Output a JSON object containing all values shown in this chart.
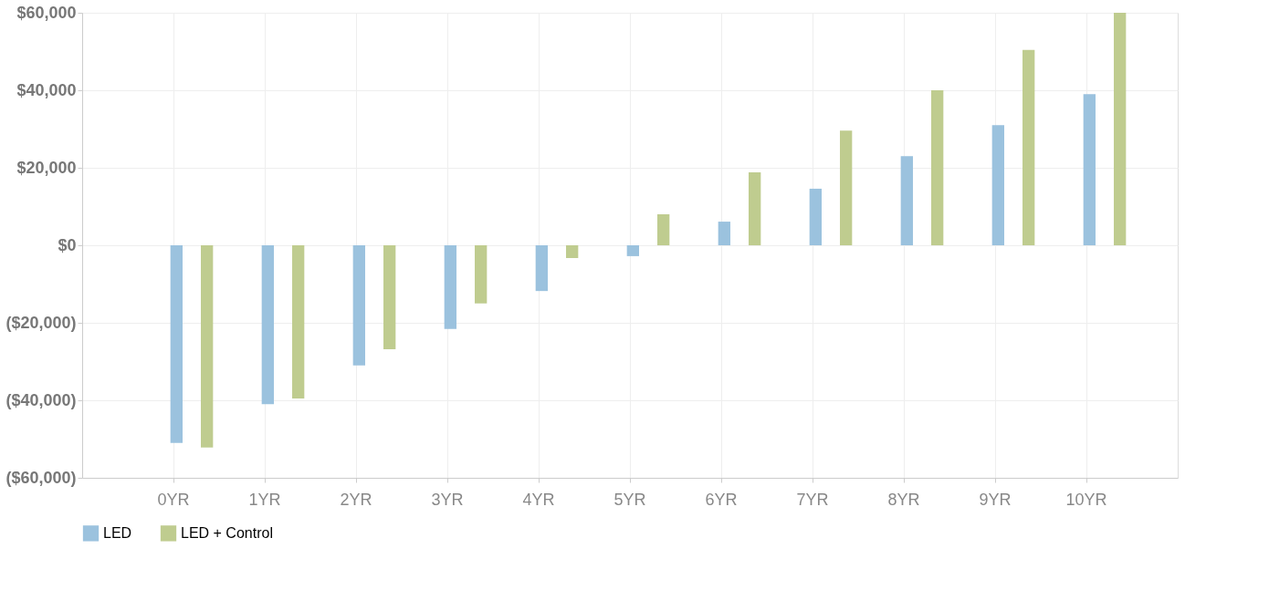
{
  "chart_data": {
    "type": "bar",
    "categories": [
      "0YR",
      "1YR",
      "2YR",
      "3YR",
      "4YR",
      "5YR",
      "6YR",
      "7YR",
      "8YR",
      "9YR",
      "10YR"
    ],
    "series": [
      {
        "name": "LED",
        "color": "#9bc2de",
        "values": [
          -51000,
          -41000,
          -31000,
          -21600,
          -11800,
          -2800,
          6100,
          14600,
          23000,
          31000,
          39000
        ]
      },
      {
        "name": "LED + Control",
        "color": "#bfcc8f",
        "values": [
          -52200,
          -39500,
          -26800,
          -15000,
          -3300,
          8000,
          18800,
          29600,
          40000,
          50400,
          60000
        ]
      }
    ],
    "ylim": [
      -60000,
      60000
    ],
    "yticks": [
      {
        "value": -60000,
        "label": "($60,000)"
      },
      {
        "value": -40000,
        "label": "($40,000)"
      },
      {
        "value": -20000,
        "label": "($20,000)"
      },
      {
        "value": 0,
        "label": "$0"
      },
      {
        "value": 20000,
        "label": "$20,000"
      },
      {
        "value": 40000,
        "label": "$40,000"
      },
      {
        "value": 60000,
        "label": "$60,000"
      }
    ],
    "grid": true,
    "legend": "bottom"
  }
}
